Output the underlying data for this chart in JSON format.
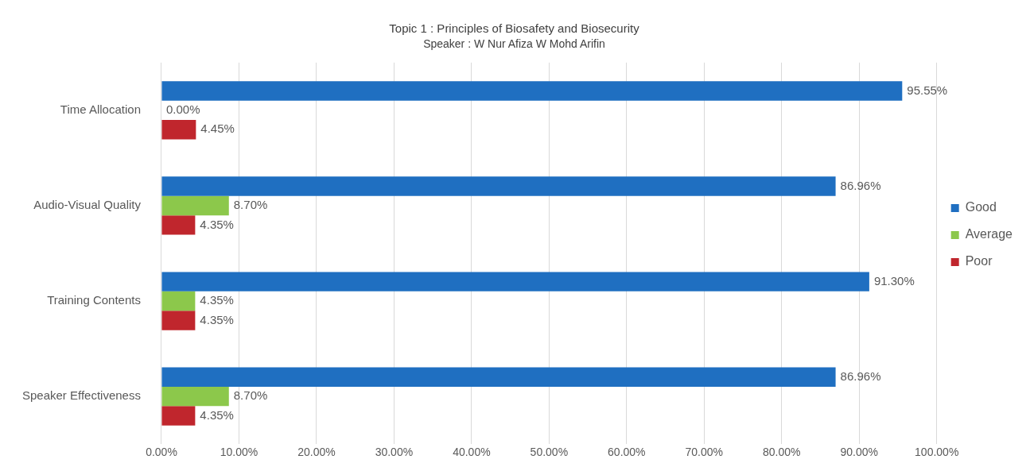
{
  "chart_data": {
    "type": "bar",
    "orientation": "horizontal",
    "title": "Topic 1 : Principles of Biosafety and Biosecurity",
    "subtitle": "Speaker : W Nur Afiza W Mohd Arifin",
    "categories": [
      "Time Allocation",
      "Audio-Visual Quality",
      "Training Contents",
      "Speaker Effectiveness"
    ],
    "series": [
      {
        "name": "Good",
        "color": "#1f6fc1",
        "values": [
          95.55,
          86.96,
          91.3,
          86.96
        ],
        "value_labels": [
          "95.55%",
          "86.96%",
          "91.30%",
          "86.96%"
        ]
      },
      {
        "name": "Average",
        "color": "#8cc84b",
        "values": [
          0,
          8.7,
          4.35,
          8.7
        ],
        "value_labels": [
          "0.00%",
          "8.70%",
          "4.35%",
          "8.70%"
        ]
      },
      {
        "name": "Poor",
        "color": "#c0262d",
        "values": [
          4.45,
          4.35,
          4.35,
          4.35
        ],
        "value_labels": [
          "4.45%",
          "4.35%",
          "4.35%",
          "4.35%"
        ]
      }
    ],
    "xlim": [
      0,
      100
    ],
    "xticks": [
      {
        "value": 0,
        "label": "0.00%"
      },
      {
        "value": 10,
        "label": "10.00%"
      },
      {
        "value": 20,
        "label": "20.00%"
      },
      {
        "value": 30,
        "label": "30.00%"
      },
      {
        "value": 40,
        "label": "40.00%"
      },
      {
        "value": 50,
        "label": "50.00%"
      },
      {
        "value": 60,
        "label": "60.00%"
      },
      {
        "value": 70,
        "label": "70.00%"
      },
      {
        "value": 80,
        "label": "80.00%"
      },
      {
        "value": 90,
        "label": "90.00%"
      },
      {
        "value": 100,
        "label": "100.00%"
      }
    ],
    "grid": "x",
    "legend": "right"
  }
}
